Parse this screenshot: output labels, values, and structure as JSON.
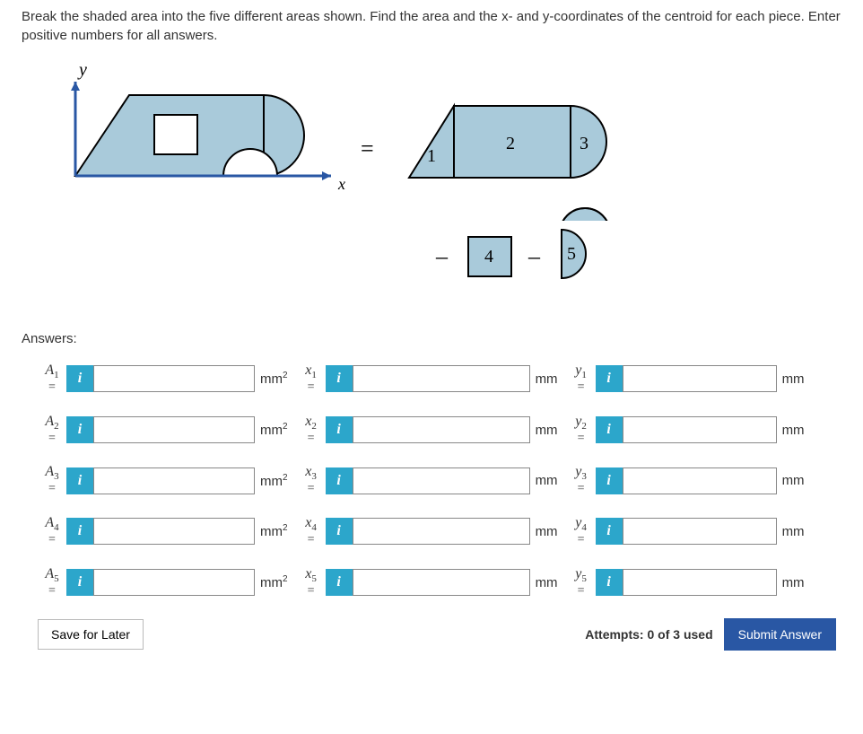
{
  "question": "Break the shaded area into the five different areas shown. Find the area and the x- and y-coordinates of the centroid for each piece. Enter positive numbers for all answers.",
  "diagram": {
    "y_label": "y",
    "x_label": "x",
    "eq": "=",
    "minus": "–",
    "axis_color": "#000000",
    "fill_color": "#a9cada",
    "stroke_color": "#000000",
    "labels": {
      "n1": "1",
      "n2": "2",
      "n3": "3",
      "n4": "4",
      "n5": "5"
    }
  },
  "answers_label": "Answers:",
  "rows": [
    {
      "a_label": "A",
      "a_sub": "1",
      "x_label": "x",
      "x_sub": "1",
      "y_label": "y",
      "y_sub": "1"
    },
    {
      "a_label": "A",
      "a_sub": "2",
      "x_label": "x",
      "x_sub": "2",
      "y_label": "y",
      "y_sub": "2"
    },
    {
      "a_label": "A",
      "a_sub": "3",
      "x_label": "x",
      "x_sub": "3",
      "y_label": "y",
      "y_sub": "3"
    },
    {
      "a_label": "A",
      "a_sub": "4",
      "x_label": "x",
      "x_sub": "4",
      "y_label": "y",
      "y_sub": "4"
    },
    {
      "a_label": "A",
      "a_sub": "5",
      "x_label": "x",
      "x_sub": "5",
      "y_label": "y",
      "y_sub": "5"
    }
  ],
  "units": {
    "area": "mm",
    "area_sup": "2",
    "len": "mm"
  },
  "info_icon": "i",
  "save_label": "Save for Later",
  "attempts": "Attempts: 0 of 3 used",
  "submit_label": "Submit Answer"
}
